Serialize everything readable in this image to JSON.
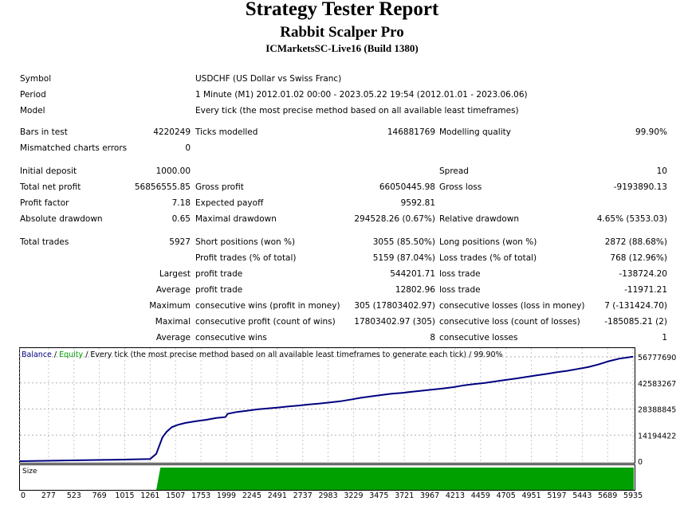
{
  "report": {
    "title": "Strategy Tester Report",
    "ea_name": "Rabbit Scalper Pro",
    "server": "ICMarketsSC-Live16 (Build 1380)"
  },
  "info": {
    "symbol_label": "Symbol",
    "symbol_value": "USDCHF (US Dollar vs Swiss Franc)",
    "period_label": "Period",
    "period_value": "1 Minute (M1) 2012.01.02 00:00 - 2023.05.22 19:54 (2012.01.01 - 2023.06.06)",
    "model_label": "Model",
    "model_value": "Every tick (the most precise method based on all available least timeframes)"
  },
  "stats": {
    "bars_label": "Bars in test",
    "bars_value": "4220249",
    "ticks_label": "Ticks modelled",
    "ticks_value": "146881769",
    "quality_label": "Modelling quality",
    "quality_value": "99.90%",
    "mismatch_label": "Mismatched charts errors",
    "mismatch_value": "0",
    "deposit_label": "Initial deposit",
    "deposit_value": "1000.00",
    "spread_label": "Spread",
    "spread_value": "10",
    "netprofit_label": "Total net profit",
    "netprofit_value": "56856555.85",
    "grossprofit_label": "Gross profit",
    "grossprofit_value": "66050445.98",
    "grossloss_label": "Gross loss",
    "grossloss_value": "-9193890.13",
    "pf_label": "Profit factor",
    "pf_value": "7.18",
    "payoff_label": "Expected payoff",
    "payoff_value": "9592.81",
    "absdd_label": "Absolute drawdown",
    "absdd_value": "0.65",
    "maxdd_label": "Maximal drawdown",
    "maxdd_value": "294528.26 (0.67%)",
    "reldd_label": "Relative drawdown",
    "reldd_value": "4.65% (5353.03)",
    "trades_label": "Total trades",
    "trades_value": "5927",
    "short_label": "Short positions (won %)",
    "short_value": "3055 (85.50%)",
    "long_label": "Long positions (won %)",
    "long_value": "2872 (88.68%)",
    "pt_label": "Profit trades (% of total)",
    "pt_value": "5159 (87.04%)",
    "lt_label": "Loss trades (% of total)",
    "lt_value": "768 (12.96%)",
    "largest_label": "Largest",
    "largest_pt_label": "profit trade",
    "largest_pt_value": "544201.71",
    "largest_lt_label": "loss trade",
    "largest_lt_value": "-138724.20",
    "average_label": "Average",
    "average_pt_label": "profit trade",
    "average_pt_value": "12802.96",
    "average_lt_label": "loss trade",
    "average_lt_value": "-11971.21",
    "maximum_label": "Maximum",
    "max_cw_label": "consecutive wins (profit in money)",
    "max_cw_value": "305 (17803402.97)",
    "max_cl_label": "consecutive losses (loss in money)",
    "max_cl_value": "7 (-131424.70)",
    "maximal_label": "Maximal",
    "maxl_cp_label": "consecutive profit (count of wins)",
    "maxl_cp_value": "17803402.97 (305)",
    "maxl_cl_label": "consecutive loss (count of losses)",
    "maxl_cl_value": "-185085.21 (2)",
    "average2_label": "Average",
    "avg_cw_label": "consecutive wins",
    "avg_cw_value": "8",
    "avg_cl_label": "consecutive losses",
    "avg_cl_value": "1"
  },
  "chart_data": {
    "type": "line",
    "legend": {
      "balance": "Balance",
      "separator": " / ",
      "equity": "Equity",
      "rest": " / Every tick (the most precise method based on all available least timeframes to generate each tick)  / 99.90%"
    },
    "ylim": [
      0,
      60000000
    ],
    "y_ticks": [
      0,
      14194422,
      28388845,
      42583267,
      56777690
    ],
    "x_ticks": [
      0,
      277,
      523,
      769,
      1015,
      1261,
      1507,
      1753,
      1999,
      2245,
      2491,
      2737,
      2983,
      3229,
      3475,
      3721,
      3967,
      4213,
      4459,
      4705,
      4951,
      5197,
      5443,
      5689,
      5935
    ],
    "xlim": [
      0,
      5950
    ],
    "series": [
      {
        "name": "Balance",
        "color": "#000080",
        "x": [
          0,
          900,
          1261,
          1320,
          1380,
          1420,
          1470,
          1530,
          1600,
          1700,
          1800,
          1900,
          1990,
          2010,
          2100,
          2200,
          2300,
          2400,
          2500,
          2600,
          2700,
          2800,
          2900,
          3000,
          3100,
          3200,
          3300,
          3400,
          3500,
          3600,
          3700,
          3800,
          3900,
          4000,
          4100,
          4200,
          4300,
          4400,
          4500,
          4600,
          4700,
          4800,
          4900,
          5000,
          5100,
          5200,
          5300,
          5400,
          5500,
          5600,
          5700,
          5800,
          5935
        ],
        "y": [
          1000,
          800000,
          1200000,
          4000000,
          13000000,
          16000000,
          18500000,
          19800000,
          20800000,
          21700000,
          22500000,
          23500000,
          24000000,
          25800000,
          26800000,
          27500000,
          28200000,
          28700000,
          29200000,
          29800000,
          30300000,
          30900000,
          31400000,
          32000000,
          32600000,
          33500000,
          34500000,
          35300000,
          36000000,
          36700000,
          37200000,
          37800000,
          38400000,
          39000000,
          39600000,
          40300000,
          41300000,
          42000000,
          42600000,
          43400000,
          44200000,
          45000000,
          45800000,
          46700000,
          47500000,
          48400000,
          49200000,
          50200000,
          51200000,
          52600000,
          54400000,
          55800000,
          56857556
        ]
      }
    ],
    "size_panel": {
      "label": "Size",
      "color": "#00a000",
      "start_x": 1320,
      "full_x": 1360
    }
  }
}
